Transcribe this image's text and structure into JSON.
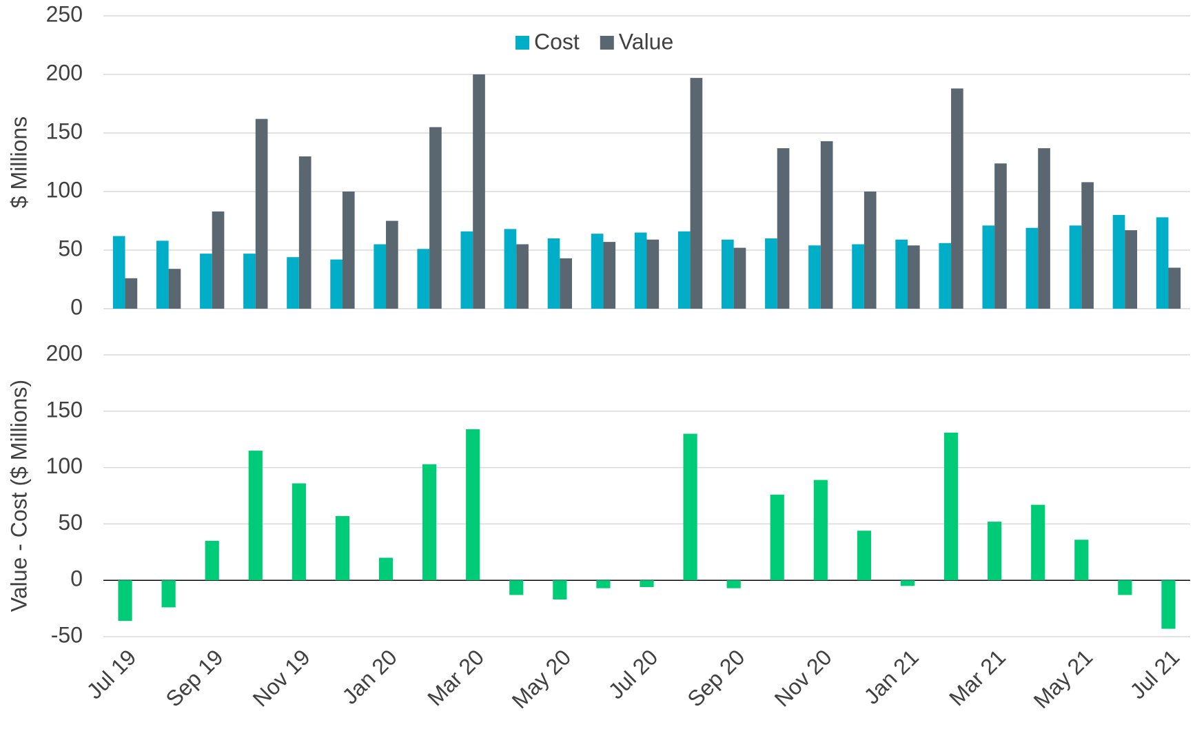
{
  "chart_data": [
    {
      "type": "bar",
      "ylabel": "$ Millions",
      "legend": "top",
      "grid": true,
      "ylim": [
        0,
        250
      ],
      "yticks": [
        0,
        50,
        100,
        150,
        200,
        250
      ],
      "series": [
        {
          "name": "Cost",
          "color": "#00aec7",
          "values": [
            62,
            58,
            47,
            47,
            44,
            42,
            55,
            51,
            66,
            68,
            60,
            64,
            65,
            66,
            59,
            60,
            54,
            55,
            59,
            56,
            71,
            69,
            71,
            80,
            78
          ]
        },
        {
          "name": "Value",
          "color": "#5a6670",
          "values": [
            26,
            34,
            83,
            162,
            130,
            100,
            75,
            155,
            200,
            55,
            43,
            57,
            59,
            197,
            52,
            137,
            143,
            100,
            54,
            188,
            124,
            137,
            108,
            67,
            35
          ]
        }
      ]
    },
    {
      "type": "bar",
      "ylabel": "Value - Cost ($ Millions)",
      "grid": true,
      "color": "#00cc78",
      "ylim": [
        -50,
        200
      ],
      "yticks": [
        -50,
        0,
        50,
        100,
        150,
        200
      ],
      "categories": [
        "Jul 19",
        null,
        "Sep 19",
        null,
        "Nov 19",
        null,
        "Jan 20",
        null,
        "Mar 20",
        null,
        "May 20",
        null,
        "Jul 20",
        null,
        "Sep 20",
        null,
        "Nov 20",
        null,
        "Jan 21",
        null,
        "Mar 21",
        null,
        "May 21",
        null,
        "Jul 21"
      ],
      "values": [
        -36,
        -24,
        35,
        115,
        86,
        57,
        20,
        103,
        134,
        -13,
        -17,
        -7,
        -6,
        130,
        -7,
        76,
        89,
        44,
        -5,
        131,
        52,
        67,
        36,
        -13,
        -43
      ]
    }
  ]
}
